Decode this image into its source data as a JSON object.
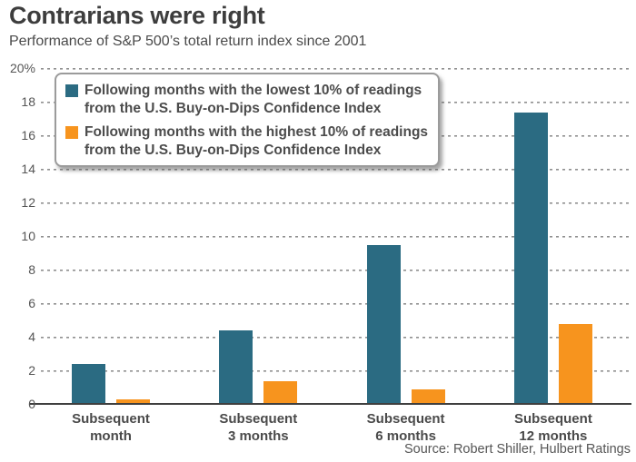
{
  "title": "Contrarians were right",
  "subtitle": "Performance of S&P 500’s total return index since 2001",
  "source": "Source: Robert Shiller, Hulbert Ratings",
  "colors": {
    "series_lowest": "#2b6b82",
    "series_highest": "#f7941e",
    "title_text": "#3d3d3d",
    "grid": "#8f8f8f",
    "axis": "#3f3f3f"
  },
  "legend": {
    "items": [
      {
        "lines": [
          "Following months with the lowest 10% of readings",
          "from the U.S. Buy-on-Dips Confidence Index"
        ],
        "color": "#2b6b82"
      },
      {
        "lines": [
          "Following months with the highest 10% of readings",
          "from the U.S. Buy-on-Dips Confidence Index"
        ],
        "color": "#f7941e"
      }
    ]
  },
  "chart_data": {
    "type": "bar",
    "title": "Contrarians were right",
    "subtitle": "Performance of S&P 500’s total return index since 2001",
    "categories": [
      "Subsequent month",
      "Subsequent 3 months",
      "Subsequent 6 months",
      "Subsequent 12 months"
    ],
    "category_lines": [
      [
        "Subsequent",
        "month"
      ],
      [
        "Subsequent",
        "3 months"
      ],
      [
        "Subsequent",
        "6 months"
      ],
      [
        "Subsequent",
        "12 months"
      ]
    ],
    "series": [
      {
        "name": "Following months with the lowest 10% of readings from the U.S. Buy-on-Dips Confidence Index",
        "color": "#2b6b82",
        "values": [
          2.3,
          4.3,
          9.4,
          17.3
        ]
      },
      {
        "name": "Following months with the highest 10% of readings from the U.S. Buy-on-Dips Confidence Index",
        "color": "#f7941e",
        "values": [
          0.2,
          1.3,
          0.8,
          4.7
        ]
      }
    ],
    "ylim": [
      0,
      20
    ],
    "ytick_interval": 2,
    "ytick_labels": [
      "20%",
      "18",
      "16",
      "14",
      "12",
      "10",
      "8",
      "6",
      "4",
      "2",
      "0"
    ],
    "grid": "horizontal-dotted",
    "legend_position": "top-left",
    "unit": "%"
  }
}
